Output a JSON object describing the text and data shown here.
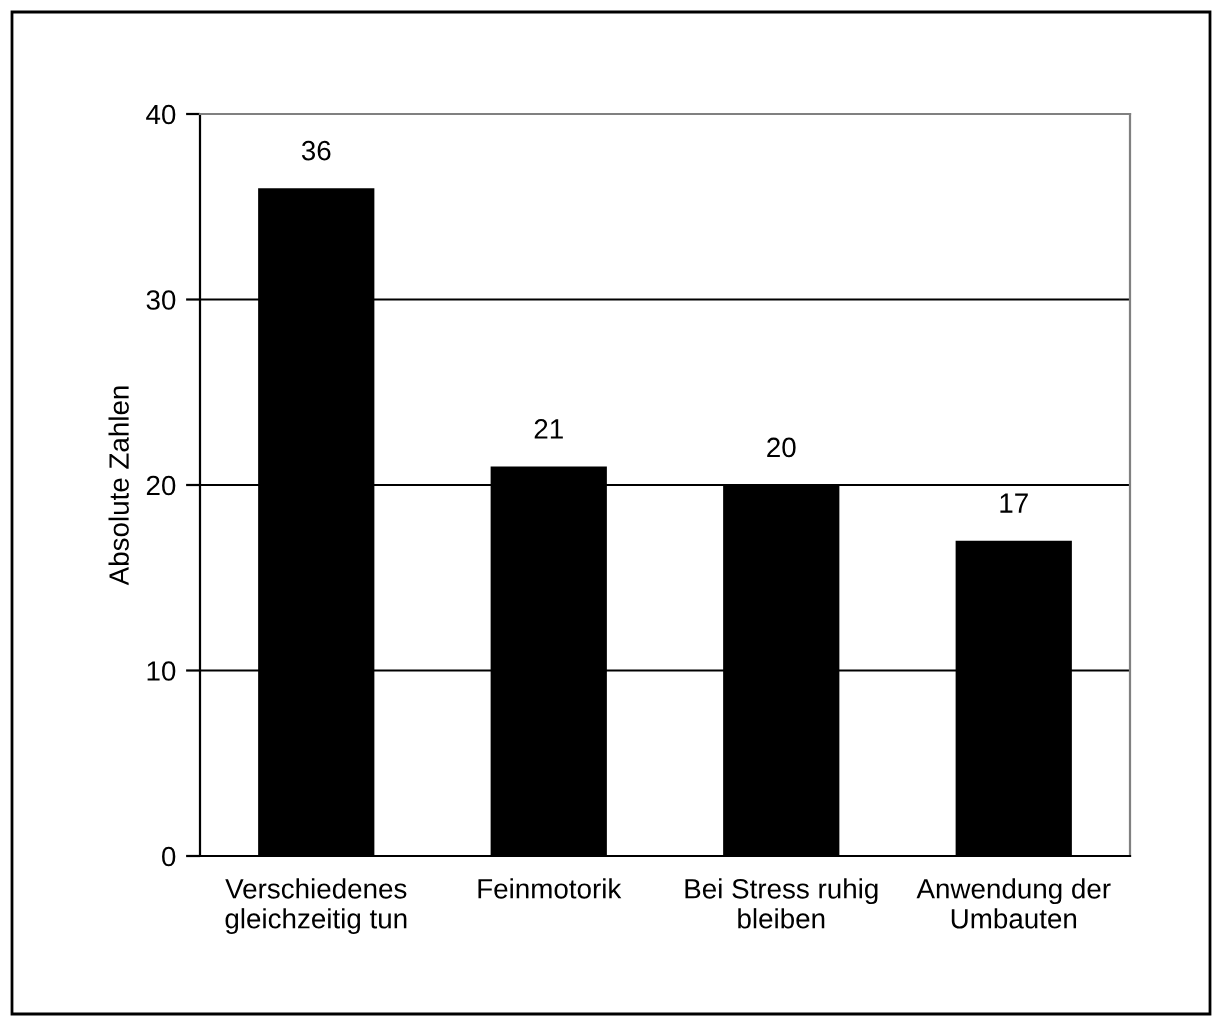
{
  "chart_data": {
    "type": "bar",
    "ylabel": "Absolute Zahlen",
    "categories": [
      "Verschiedenes\ngleichzeitig tun",
      "Feinmotorik",
      "Bei Stress ruhig\nbleiben",
      "Anwendung der\nUmbauten"
    ],
    "values": [
      36,
      21,
      20,
      17
    ],
    "color": "#000000",
    "data_labels": true,
    "ylim": [
      0,
      40
    ],
    "yticks": [
      0,
      10,
      20,
      30,
      40
    ],
    "grid": "y",
    "legend": false
  }
}
